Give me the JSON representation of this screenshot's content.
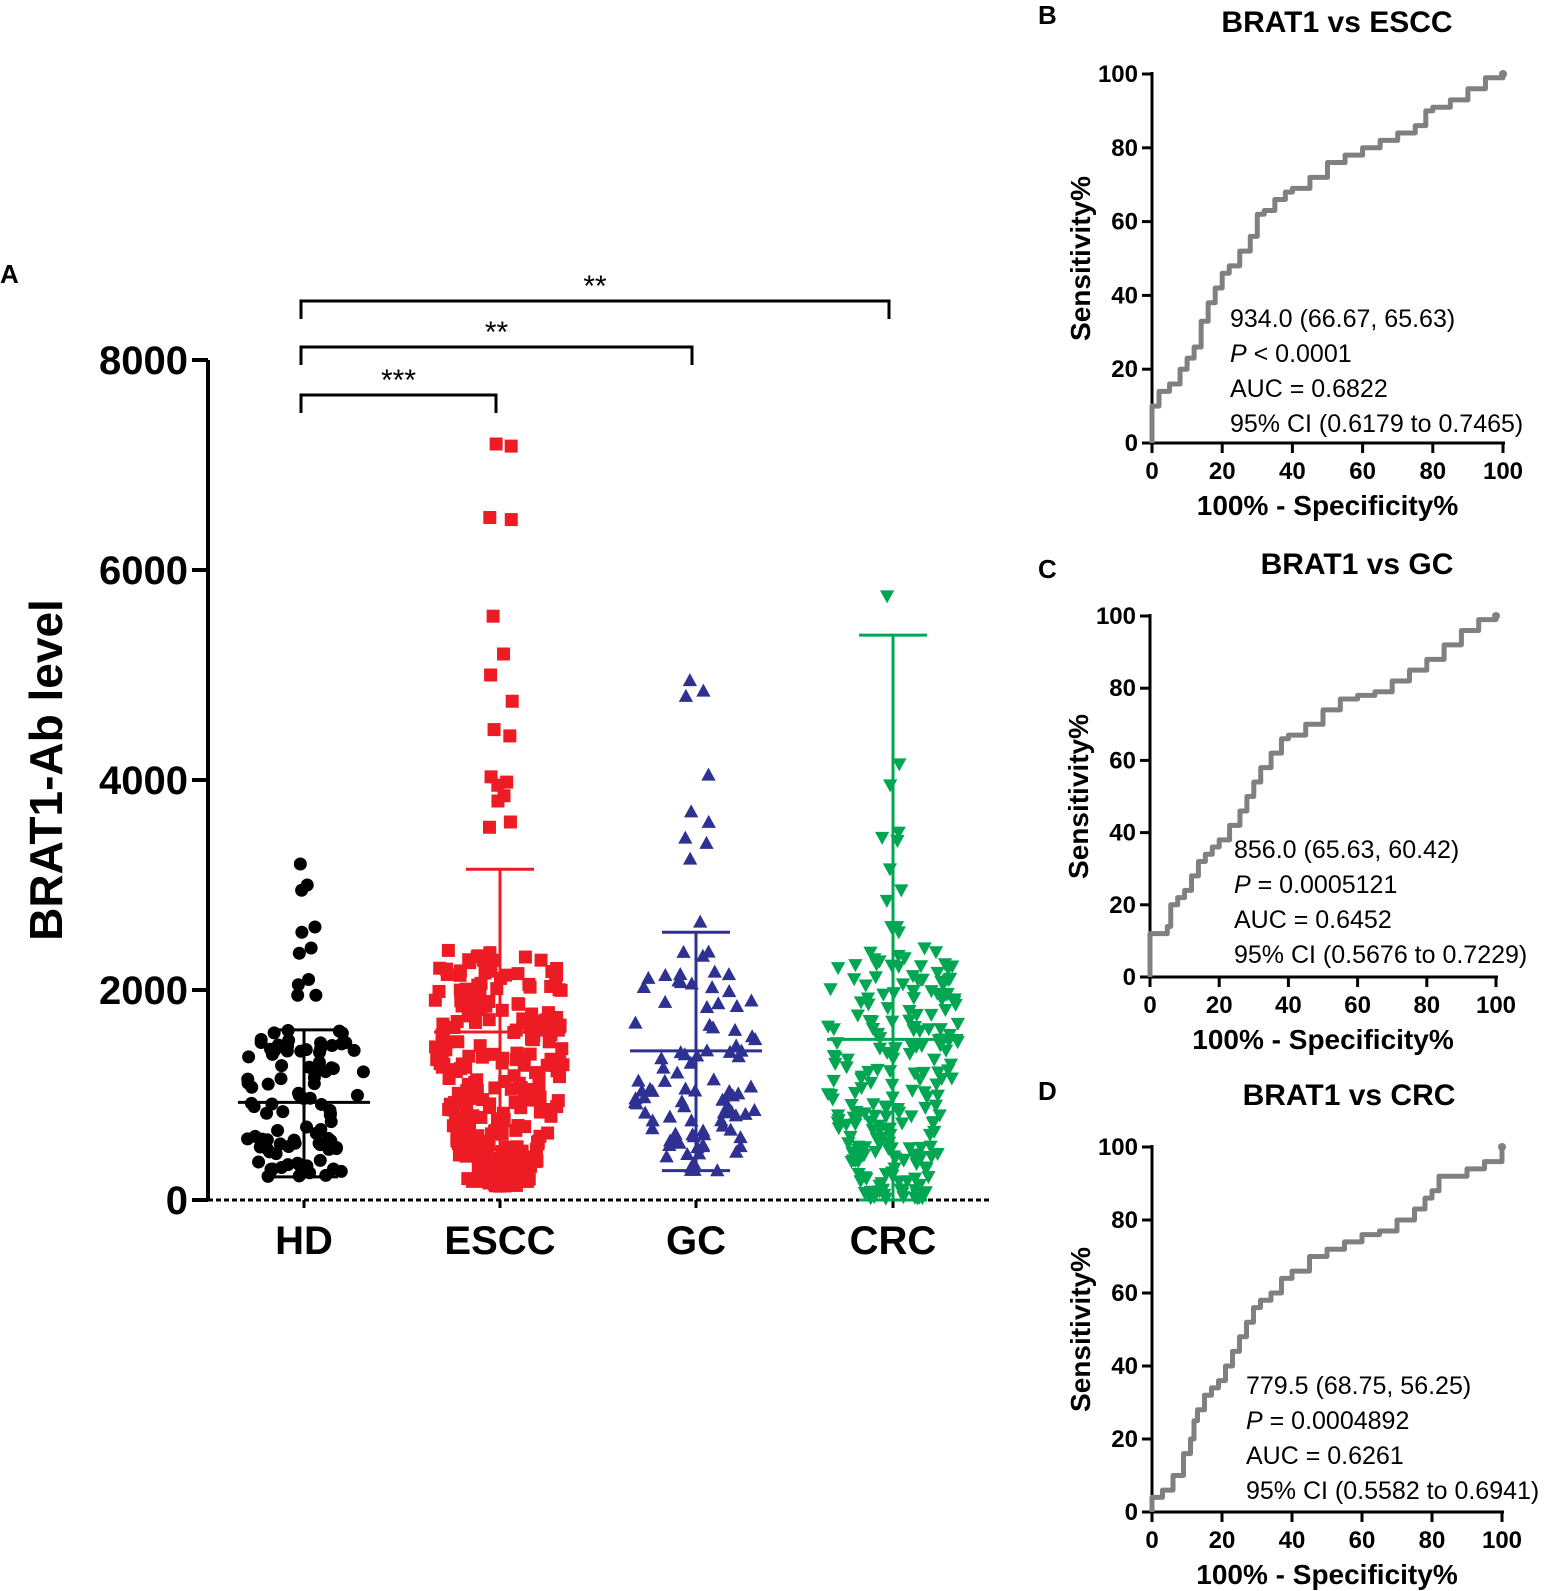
{
  "chart_data": [
    {
      "panel": "A",
      "type": "scatter",
      "title": "",
      "ylabel": "BRAT1-Ab level",
      "xlabel": "",
      "ylim": [
        0,
        8000
      ],
      "yticks": [
        "0",
        "2000",
        "4000",
        "6000",
        "8000"
      ],
      "categories": [
        "HD",
        "ESCC",
        "GC",
        "CRC"
      ],
      "series": [
        {
          "name": "HD",
          "color": "#000000",
          "marker": "circle",
          "mean": 930,
          "sd_low": 220,
          "sd_high": 1620,
          "outliers": [
            3200,
            3000,
            2950,
            2600,
            2550,
            2400,
            2350,
            2100,
            2050,
            1950,
            1950
          ]
        },
        {
          "name": "ESCC",
          "color": "#ed1c24",
          "marker": "square",
          "mean": 1600,
          "sd_low": 130,
          "sd_high": 3150,
          "outliers": [
            7200,
            7180,
            6500,
            6480,
            5560,
            5200,
            5000,
            4750,
            4480,
            4420,
            4030,
            3980,
            3950,
            3850,
            3800,
            3600,
            3550
          ]
        },
        {
          "name": "GC",
          "color": "#2e3192",
          "marker": "triangle-up",
          "mean": 1420,
          "sd_low": 280,
          "sd_high": 2550,
          "outliers": [
            4950,
            4850,
            4800,
            4050,
            3700,
            3600,
            3450,
            3400,
            3250,
            2650
          ]
        },
        {
          "name": "CRC",
          "color": "#00a651",
          "marker": "triangle-down",
          "mean": 1530,
          "sd_low": 0,
          "sd_high": 5380,
          "outliers": [
            5750,
            4150,
            3950,
            3500,
            3450,
            3420,
            3150,
            2950,
            2850,
            2600,
            2600,
            2550
          ]
        }
      ],
      "significance": [
        {
          "from": "HD",
          "to": "ESCC",
          "label": "***"
        },
        {
          "from": "HD",
          "to": "GC",
          "label": "**"
        },
        {
          "from": "HD",
          "to": "CRC",
          "label": "**"
        }
      ]
    },
    {
      "panel": "B",
      "type": "line",
      "title": "BRAT1 vs ESCC",
      "xlabel": "100% - Specificity%",
      "ylabel": "Sensitivity%",
      "xlim": [
        0,
        100
      ],
      "ylim": [
        0,
        100
      ],
      "ticks": [
        "0",
        "20",
        "40",
        "60",
        "80",
        "100"
      ],
      "x": [
        0,
        0,
        2,
        5,
        8,
        10,
        12,
        14,
        16,
        18,
        20,
        22,
        25,
        28,
        30,
        32,
        35,
        38,
        40,
        45,
        50,
        55,
        60,
        65,
        70,
        75,
        78,
        80,
        85,
        90,
        95,
        100
      ],
      "y": [
        0,
        10,
        14,
        16,
        20,
        23,
        26,
        33,
        38,
        42,
        46,
        48,
        52,
        56,
        62,
        63,
        66,
        68,
        69,
        72,
        76,
        78,
        80,
        82,
        84,
        86,
        90,
        91,
        93,
        96,
        99,
        100
      ],
      "annotation": [
        "934.0 (66.67, 65.63)",
        "P",
        " < 0.0001",
        "AUC = 0.6822",
        "95% CI (0.6179 to 0.7465)"
      ]
    },
    {
      "panel": "C",
      "type": "line",
      "title": "BRAT1 vs GC",
      "xlabel": "100% - Specificity%",
      "ylabel": "Sensitivity%",
      "xlim": [
        0,
        100
      ],
      "ylim": [
        0,
        100
      ],
      "ticks": [
        "0",
        "20",
        "40",
        "60",
        "80",
        "100"
      ],
      "x": [
        0,
        0,
        2,
        5,
        6,
        8,
        10,
        12,
        14,
        16,
        18,
        20,
        23,
        26,
        28,
        30,
        32,
        35,
        38,
        40,
        45,
        50,
        55,
        60,
        65,
        70,
        75,
        80,
        85,
        90,
        95,
        100
      ],
      "y": [
        0,
        12,
        12,
        14,
        20,
        22,
        24,
        28,
        32,
        34,
        36,
        38,
        42,
        46,
        50,
        54,
        58,
        62,
        66,
        67,
        70,
        74,
        77,
        78,
        79,
        82,
        85,
        88,
        92,
        96,
        99,
        100
      ],
      "annotation": [
        "856.0 (65.63, 60.42)",
        "P",
        " = 0.0005121",
        "AUC = 0.6452",
        "95% CI (0.5676 to 0.7229)"
      ]
    },
    {
      "panel": "D",
      "type": "line",
      "title": "BRAT1 vs CRC",
      "xlabel": "100% - Specificity%",
      "ylabel": "Sensitivity%",
      "xlim": [
        0,
        100
      ],
      "ylim": [
        0,
        100
      ],
      "ticks": [
        "0",
        "20",
        "40",
        "60",
        "80",
        "100"
      ],
      "x": [
        0,
        0,
        3,
        6,
        9,
        11,
        12,
        13,
        15,
        17,
        19,
        21,
        23,
        25,
        27,
        29,
        31,
        34,
        37,
        40,
        45,
        50,
        55,
        60,
        65,
        70,
        75,
        78,
        80,
        82,
        85,
        90,
        95,
        100
      ],
      "y": [
        0,
        4,
        6,
        10,
        16,
        20,
        25,
        28,
        32,
        34,
        36,
        40,
        44,
        48,
        52,
        56,
        58,
        60,
        64,
        66,
        70,
        72,
        74,
        76,
        77,
        80,
        83,
        86,
        88,
        92,
        92,
        94,
        96,
        100
      ],
      "annotation": [
        "779.5 (68.75, 56.25)",
        "P",
        " = 0.0004892",
        "AUC = 0.6261",
        "95% CI (0.5582 to 0.6941)"
      ]
    }
  ]
}
